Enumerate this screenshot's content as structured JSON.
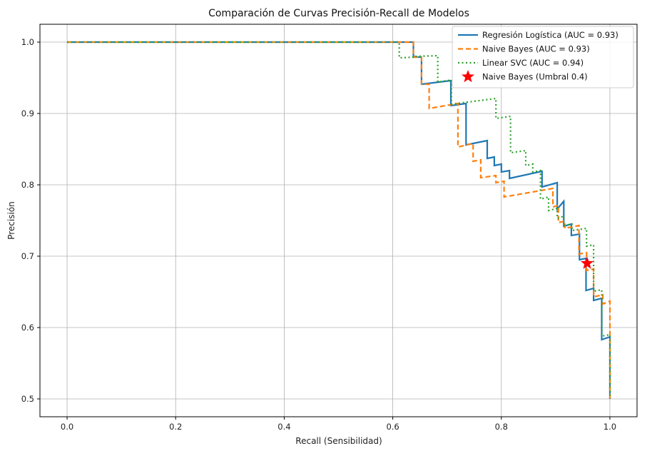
{
  "chart_data": {
    "type": "line",
    "title": "Comparación de Curvas Precisión-Recall de Modelos",
    "xlabel": "Recall (Sensibilidad)",
    "ylabel": "Precisión",
    "xlim": [
      -0.05,
      1.05
    ],
    "ylim": [
      0.475,
      1.025
    ],
    "xticks": [
      "0.0",
      "0.2",
      "0.4",
      "0.6",
      "0.8",
      "1.0"
    ],
    "yticks": [
      "0.5",
      "0.6",
      "0.7",
      "0.8",
      "0.9",
      "1.0"
    ],
    "grid": true,
    "legend_position": "top-right",
    "series": [
      {
        "name": "Regresión Logística (AUC = 0.93)",
        "color": "#1f77b4",
        "style": "solid",
        "points": [
          [
            0.0,
            1.0
          ],
          [
            0.638,
            1.0
          ],
          [
            0.638,
            0.979
          ],
          [
            0.653,
            0.979
          ],
          [
            0.653,
            0.941
          ],
          [
            0.707,
            0.946
          ],
          [
            0.707,
            0.911
          ],
          [
            0.735,
            0.914
          ],
          [
            0.735,
            0.856
          ],
          [
            0.774,
            0.862
          ],
          [
            0.774,
            0.837
          ],
          [
            0.787,
            0.839
          ],
          [
            0.787,
            0.827
          ],
          [
            0.8,
            0.829
          ],
          [
            0.8,
            0.818
          ],
          [
            0.815,
            0.82
          ],
          [
            0.815,
            0.809
          ],
          [
            0.875,
            0.819
          ],
          [
            0.875,
            0.797
          ],
          [
            0.903,
            0.803
          ],
          [
            0.903,
            0.766
          ],
          [
            0.915,
            0.777
          ],
          [
            0.915,
            0.742
          ],
          [
            0.929,
            0.745
          ],
          [
            0.929,
            0.729
          ],
          [
            0.944,
            0.731
          ],
          [
            0.944,
            0.695
          ],
          [
            0.956,
            0.697
          ],
          [
            0.956,
            0.652
          ],
          [
            0.97,
            0.655
          ],
          [
            0.97,
            0.638
          ],
          [
            0.985,
            0.641
          ],
          [
            0.985,
            0.583
          ],
          [
            1.0,
            0.587
          ],
          [
            1.0,
            0.5
          ]
        ]
      },
      {
        "name": "Naive Bayes (AUC = 0.93)",
        "color": "#ff7f0e",
        "style": "dashed",
        "points": [
          [
            0.0,
            1.0
          ],
          [
            0.638,
            1.0
          ],
          [
            0.638,
            0.979
          ],
          [
            0.653,
            0.979
          ],
          [
            0.653,
            0.941
          ],
          [
            0.667,
            0.941
          ],
          [
            0.667,
            0.907
          ],
          [
            0.72,
            0.914
          ],
          [
            0.72,
            0.853
          ],
          [
            0.748,
            0.858
          ],
          [
            0.748,
            0.833
          ],
          [
            0.762,
            0.835
          ],
          [
            0.762,
            0.81
          ],
          [
            0.79,
            0.813
          ],
          [
            0.79,
            0.803
          ],
          [
            0.805,
            0.805
          ],
          [
            0.805,
            0.783
          ],
          [
            0.895,
            0.795
          ],
          [
            0.895,
            0.769
          ],
          [
            0.905,
            0.771
          ],
          [
            0.905,
            0.747
          ],
          [
            0.917,
            0.749
          ],
          [
            0.917,
            0.739
          ],
          [
            0.943,
            0.743
          ],
          [
            0.943,
            0.703
          ],
          [
            0.957,
            0.705
          ],
          [
            0.957,
            0.68
          ],
          [
            0.97,
            0.682
          ],
          [
            0.97,
            0.643
          ],
          [
            0.987,
            0.646
          ],
          [
            0.987,
            0.633
          ],
          [
            1.0,
            0.637
          ],
          [
            1.0,
            0.5
          ]
        ]
      },
      {
        "name": "Linear SVC (AUC = 0.94)",
        "color": "#2ca02c",
        "style": "dotted",
        "points": [
          [
            0.0,
            1.0
          ],
          [
            0.612,
            1.0
          ],
          [
            0.612,
            0.978
          ],
          [
            0.642,
            0.979
          ],
          [
            0.642,
            0.98
          ],
          [
            0.683,
            0.981
          ],
          [
            0.683,
            0.944
          ],
          [
            0.708,
            0.947
          ],
          [
            0.708,
            0.913
          ],
          [
            0.79,
            0.921
          ],
          [
            0.79,
            0.893
          ],
          [
            0.817,
            0.896
          ],
          [
            0.817,
            0.845
          ],
          [
            0.845,
            0.848
          ],
          [
            0.845,
            0.827
          ],
          [
            0.858,
            0.829
          ],
          [
            0.858,
            0.818
          ],
          [
            0.872,
            0.82
          ],
          [
            0.872,
            0.78
          ],
          [
            0.887,
            0.783
          ],
          [
            0.887,
            0.764
          ],
          [
            0.903,
            0.767
          ],
          [
            0.903,
            0.753
          ],
          [
            0.915,
            0.756
          ],
          [
            0.915,
            0.743
          ],
          [
            0.93,
            0.745
          ],
          [
            0.93,
            0.736
          ],
          [
            0.957,
            0.739
          ],
          [
            0.957,
            0.714
          ],
          [
            0.97,
            0.716
          ],
          [
            0.97,
            0.651
          ],
          [
            0.985,
            0.653
          ],
          [
            0.985,
            0.588
          ],
          [
            1.0,
            0.59
          ],
          [
            1.0,
            0.5
          ]
        ]
      }
    ],
    "markers": [
      {
        "name": "Naive Bayes (Umbral 0.4)",
        "color": "#ff0000",
        "shape": "star",
        "x": 0.958,
        "y": 0.69
      }
    ]
  }
}
